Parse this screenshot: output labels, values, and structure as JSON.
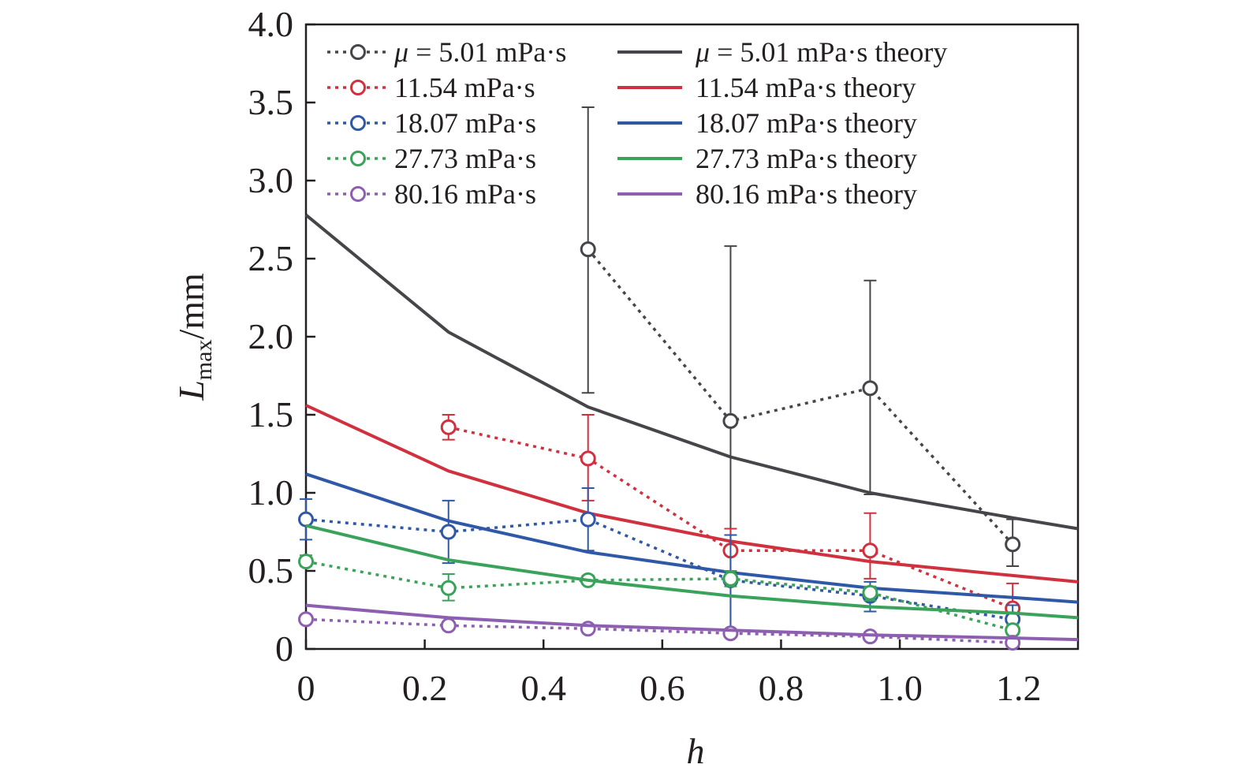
{
  "chart_data": {
    "type": "line",
    "title": "",
    "xlabel": "h",
    "ylabel": {
      "main": "L",
      "sub": "max",
      "unit": "/mm"
    },
    "xlim": [
      0,
      1.3
    ],
    "ylim": [
      0,
      4.0
    ],
    "xticks": [
      0,
      0.2,
      0.4,
      0.6,
      0.8,
      1.0,
      1.2
    ],
    "xtick_labels": [
      "0",
      "0.2",
      "0.4",
      "0.6",
      "0.8",
      "1.0",
      "1.2"
    ],
    "yticks": [
      0,
      0.5,
      1.0,
      1.5,
      2.0,
      2.5,
      3.0,
      3.5,
      4.0
    ],
    "ytick_labels": [
      "0",
      "0.5",
      "1.0",
      "1.5",
      "2.0",
      "2.5",
      "3.0",
      "3.5",
      "4.0"
    ],
    "grid": false,
    "legend_placement": "top",
    "colors": {
      "s501": "#45454a",
      "s1154": "#d0313e",
      "s1807": "#2f58a6",
      "s2773": "#3aa25a",
      "s8016": "#8d5fb0"
    },
    "series": [
      {
        "key": "s501",
        "name": "5.01 mPa·s",
        "legend_prefix": "μ",
        "legend_eq": " = ",
        "style": "dotted-marker",
        "x": [
          0.475,
          0.715,
          0.95,
          1.19
        ],
        "y": [
          2.56,
          1.46,
          1.67,
          0.67
        ],
        "err": [
          [
            1.64,
            3.47
          ],
          [
            0.12,
            2.58
          ],
          [
            0.99,
            2.36
          ],
          [
            0.53,
            0.83
          ]
        ]
      },
      {
        "key": "s501",
        "name": "5.01 mPa·s theory",
        "legend_prefix": "μ",
        "legend_eq": " = ",
        "style": "solid",
        "x": [
          0,
          0.24,
          0.475,
          0.715,
          0.95,
          1.19,
          1.3
        ],
        "y": [
          2.78,
          2.03,
          1.55,
          1.23,
          1.0,
          0.84,
          0.77
        ]
      },
      {
        "key": "s1154",
        "name": "11.54 mPa·s",
        "style": "dotted-marker",
        "x": [
          0.24,
          0.475,
          0.715,
          0.95,
          1.19
        ],
        "y": [
          1.42,
          1.22,
          0.63,
          0.63,
          0.26
        ],
        "err": [
          [
            1.34,
            1.5
          ],
          [
            0.95,
            1.5
          ],
          [
            0.5,
            0.77
          ],
          [
            0.45,
            0.87
          ],
          [
            0.12,
            0.42
          ]
        ]
      },
      {
        "key": "s1154",
        "name": "11.54 mPa·s theory",
        "style": "solid",
        "x": [
          0,
          0.24,
          0.475,
          0.715,
          0.95,
          1.19,
          1.3
        ],
        "y": [
          1.56,
          1.14,
          0.87,
          0.69,
          0.56,
          0.47,
          0.43
        ]
      },
      {
        "key": "s1807",
        "name": "18.07 mPa·s",
        "style": "dotted-marker",
        "x": [
          0,
          0.24,
          0.475,
          0.715,
          0.95,
          1.19
        ],
        "y": [
          0.83,
          0.75,
          0.83,
          0.44,
          0.34,
          0.19
        ],
        "err": [
          [
            0.7,
            0.96
          ],
          [
            0.55,
            0.95
          ],
          [
            0.63,
            1.03
          ],
          [
            0.1,
            0.73
          ],
          [
            0.24,
            0.43
          ],
          [
            0.1,
            0.28
          ]
        ]
      },
      {
        "key": "s1807",
        "name": "18.07 mPa·s theory",
        "style": "solid",
        "x": [
          0,
          0.24,
          0.475,
          0.715,
          0.95,
          1.19,
          1.3
        ],
        "y": [
          1.12,
          0.82,
          0.62,
          0.49,
          0.39,
          0.33,
          0.3
        ]
      },
      {
        "key": "s2773",
        "name": "27.73 mPa·s",
        "style": "dotted-marker",
        "x": [
          0,
          0.24,
          0.475,
          0.715,
          0.95,
          1.19
        ],
        "y": [
          0.56,
          0.39,
          0.44,
          0.45,
          0.36,
          0.12
        ],
        "err": [
          [
            0.53,
            0.6
          ],
          [
            0.31,
            0.48
          ],
          [
            0.42,
            0.47
          ],
          [
            0.4,
            0.5
          ],
          [
            0.31,
            0.4
          ],
          [
            0.09,
            0.16
          ]
        ]
      },
      {
        "key": "s2773",
        "name": "27.73 mPa·s theory",
        "style": "solid",
        "x": [
          0,
          0.24,
          0.475,
          0.715,
          0.95,
          1.19,
          1.3
        ],
        "y": [
          0.79,
          0.57,
          0.44,
          0.34,
          0.27,
          0.23,
          0.2
        ]
      },
      {
        "key": "s8016",
        "name": "80.16 mPa·s",
        "style": "dotted-marker",
        "x": [
          0,
          0.24,
          0.475,
          0.715,
          0.95,
          1.19
        ],
        "y": [
          0.19,
          0.15,
          0.13,
          0.1,
          0.08,
          0.04
        ],
        "err": [
          [
            0.17,
            0.21
          ],
          [
            0.13,
            0.17
          ],
          [
            0.11,
            0.15
          ],
          [
            0.08,
            0.12
          ],
          [
            0.07,
            0.09
          ],
          [
            0.02,
            0.06
          ]
        ]
      },
      {
        "key": "s8016",
        "name": "80.16 mPa·s theory",
        "style": "solid",
        "x": [
          0,
          0.24,
          0.475,
          0.715,
          0.95,
          1.19,
          1.3
        ],
        "y": [
          0.28,
          0.2,
          0.15,
          0.12,
          0.09,
          0.07,
          0.06
        ]
      }
    ]
  }
}
